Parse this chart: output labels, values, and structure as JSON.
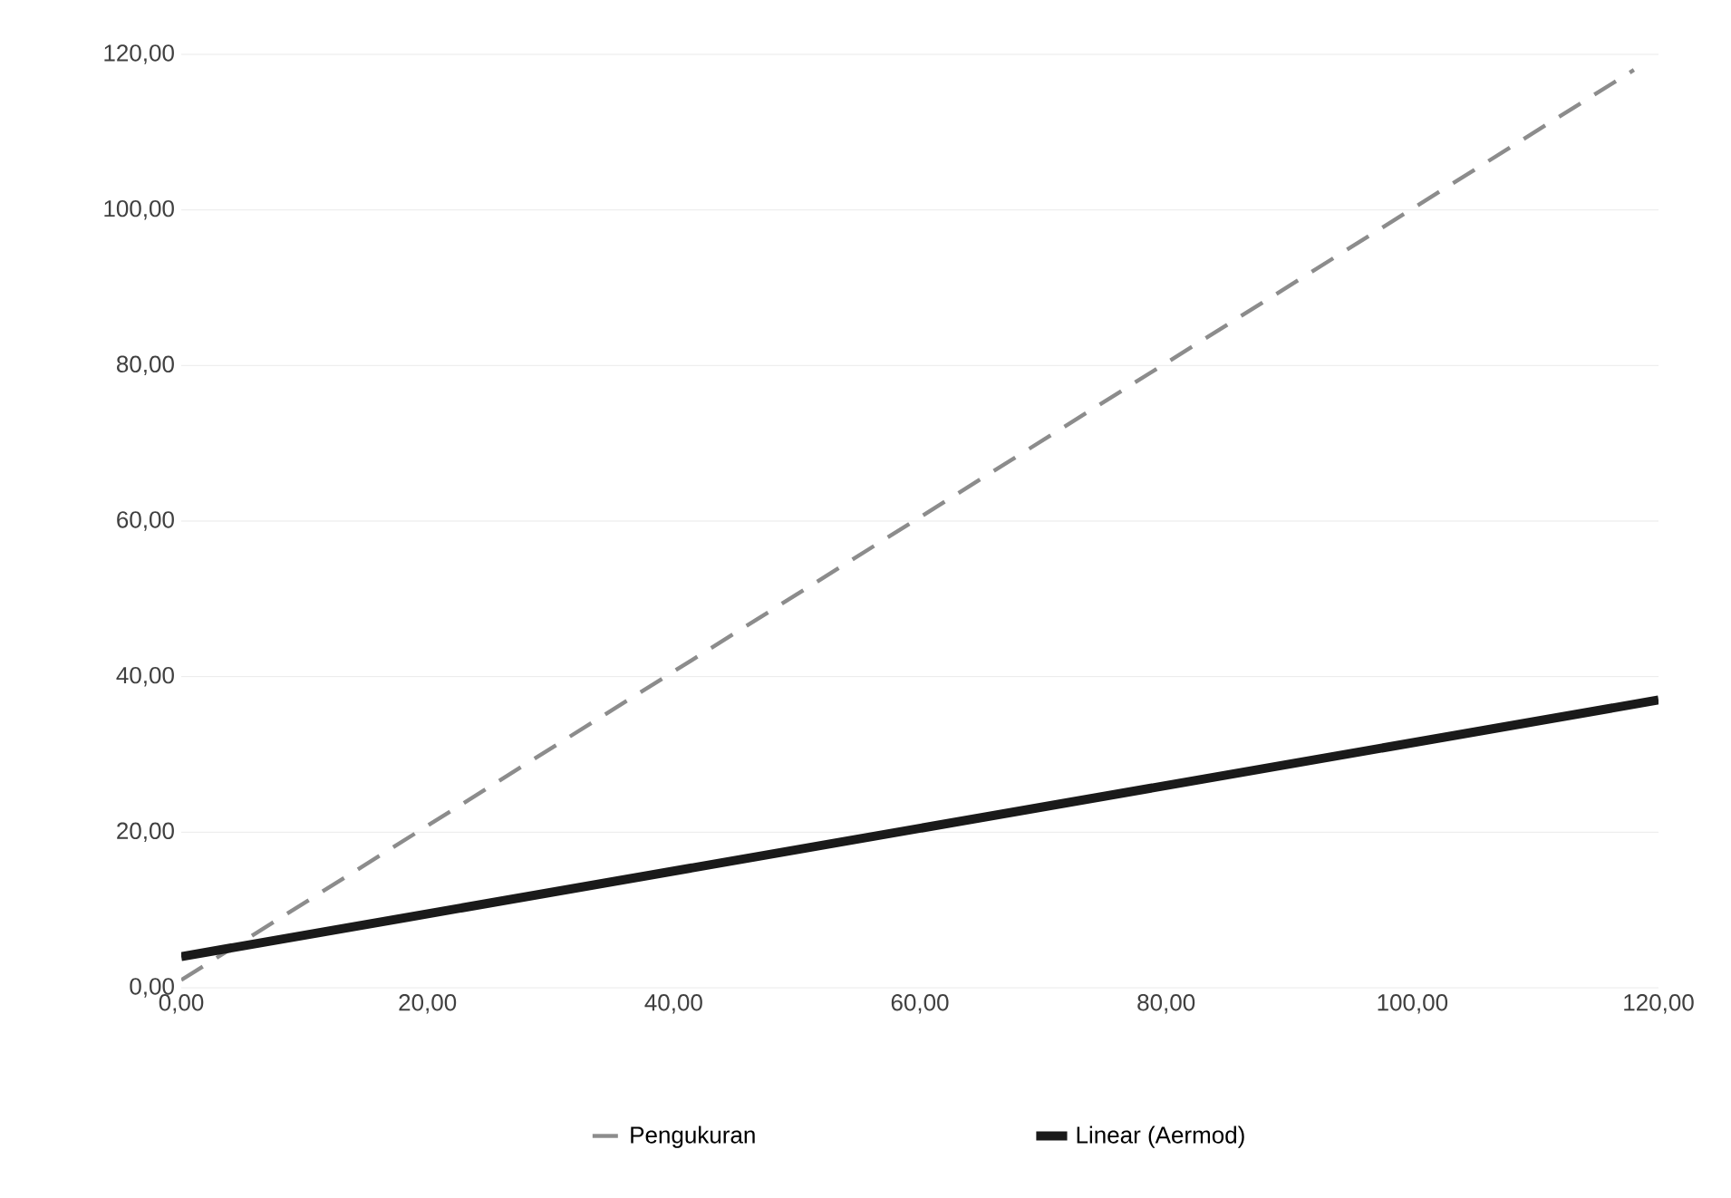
{
  "chart_data": {
    "type": "line",
    "legend": "bottom",
    "grid": "y",
    "xlim": [
      0,
      120
    ],
    "ylim": [
      0,
      120
    ],
    "xticks": [
      {
        "value": 0,
        "label": "0,00"
      },
      {
        "value": 20,
        "label": "20,00"
      },
      {
        "value": 40,
        "label": "40,00"
      },
      {
        "value": 60,
        "label": "60,00"
      },
      {
        "value": 80,
        "label": "80,00"
      },
      {
        "value": 100,
        "label": "100,00"
      },
      {
        "value": 120,
        "label": "120,00"
      }
    ],
    "yticks": [
      {
        "value": 0,
        "label": "0,00"
      },
      {
        "value": 20,
        "label": "20,00"
      },
      {
        "value": 40,
        "label": "40,00"
      },
      {
        "value": 60,
        "label": "60,00"
      },
      {
        "value": 80,
        "label": "80,00"
      },
      {
        "value": 100,
        "label": "100,00"
      },
      {
        "value": 120,
        "label": "120,00"
      }
    ],
    "series": [
      {
        "name": "Pengukuran",
        "color": "#8c8c8c",
        "line_style": "dashed",
        "x": [
          0,
          118
        ],
        "values": [
          1,
          118
        ]
      },
      {
        "name": "Linear (Aermod)",
        "color": "#1a1a1a",
        "line_style": "solid",
        "x": [
          0,
          120
        ],
        "values": [
          4,
          37
        ]
      }
    ]
  }
}
